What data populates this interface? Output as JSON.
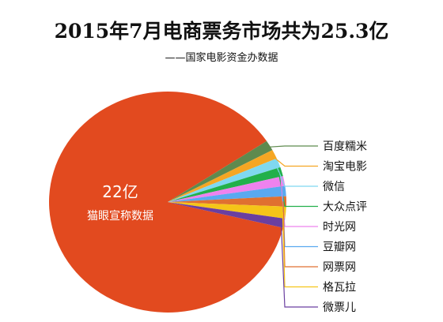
{
  "title": "2015年7月电商票务市场共为25.3亿",
  "subtitle": "——国家电影资金办数据",
  "chart_data": {
    "type": "pie",
    "title": "2015年7月电商票务市场共为25.3亿",
    "subtitle": "——国家电影资金办数据",
    "total": 25.3,
    "main_label_value": "22亿",
    "main_label_name": "猫眼宣称数据",
    "slices": [
      {
        "name": "猫眼宣称数据",
        "value": 22.0,
        "color": "#e24a1f"
      },
      {
        "name": "百度糯米",
        "value": 0.38,
        "color": "#5e8a4e"
      },
      {
        "name": "淘宝电影",
        "value": 0.34,
        "color": "#f5a623"
      },
      {
        "name": "微信",
        "value": 0.34,
        "color": "#7fd8f0"
      },
      {
        "name": "大众点评",
        "value": 0.34,
        "color": "#22b04b"
      },
      {
        "name": "时光网",
        "value": 0.36,
        "color": "#ee82ee"
      },
      {
        "name": "豆瓣网",
        "value": 0.38,
        "color": "#5aa9f0"
      },
      {
        "name": "网票网",
        "value": 0.38,
        "color": "#e07030"
      },
      {
        "name": "格瓦拉",
        "value": 0.44,
        "color": "#f5c518"
      },
      {
        "name": "微票儿",
        "value": 0.34,
        "color": "#6a3fa0"
      }
    ],
    "legend_placement": "right"
  }
}
